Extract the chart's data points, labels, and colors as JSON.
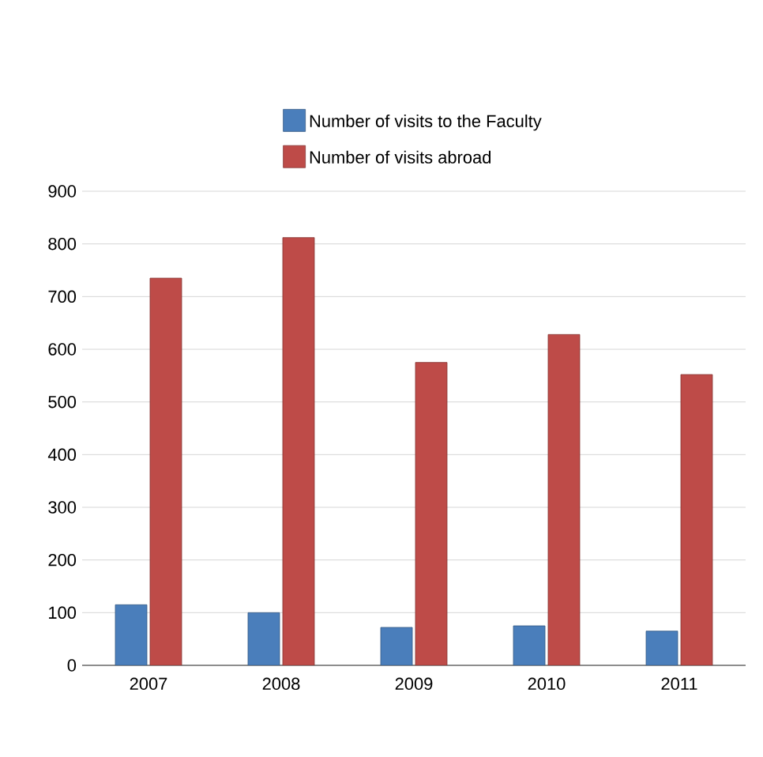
{
  "chart_data": {
    "type": "bar",
    "categories": [
      "2007",
      "2008",
      "2009",
      "2010",
      "2011"
    ],
    "series": [
      {
        "name": "Number of visits to the Faculty",
        "color": "#4a7ebb",
        "values": [
          115,
          100,
          72,
          75,
          65
        ]
      },
      {
        "name": "Number of visits abroad",
        "color": "#be4b48",
        "values": [
          735,
          812,
          575,
          628,
          552
        ]
      }
    ],
    "ylim": [
      0,
      900
    ],
    "yticks": [
      0,
      100,
      200,
      300,
      400,
      500,
      600,
      700,
      800,
      900
    ],
    "grid": "y",
    "legend": "top"
  }
}
